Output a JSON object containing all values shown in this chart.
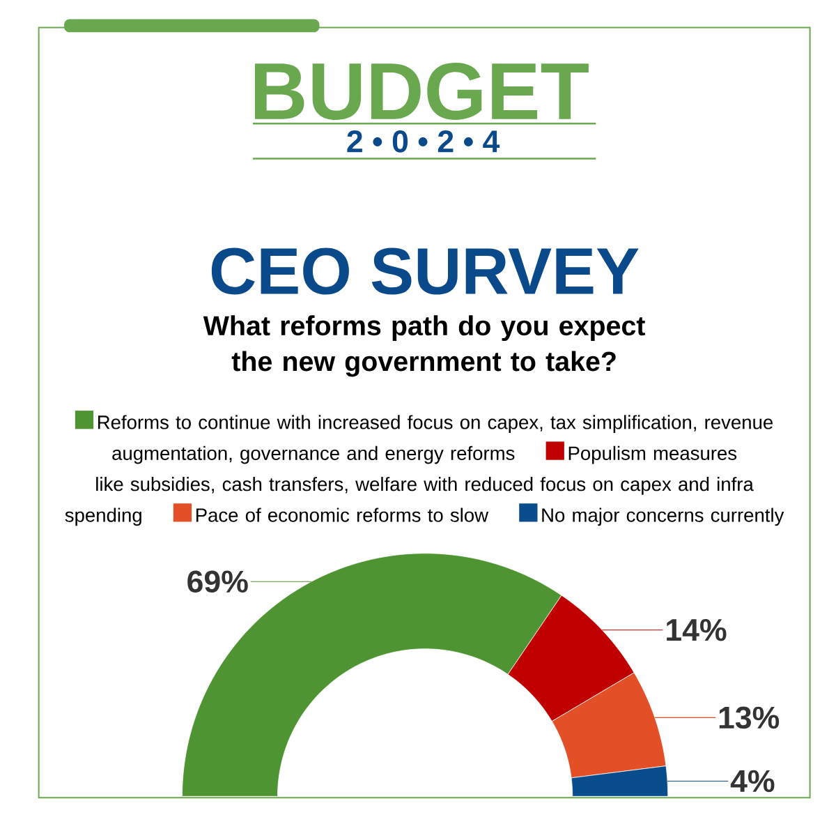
{
  "chart_data": {
    "type": "donut",
    "title": "CEO SURVEY",
    "subtitle": "What reforms path do you expect the new government to take?",
    "annotations": [
      "BUDGET",
      "2 • 0 • 2 • 4"
    ],
    "categories": [
      "Reforms to continue with increased focus on capex, tax simplification, revenue augmentation, governance and energy reforms",
      "Populism measures like subsidies, cash transfers, welfare with reduced focus on capex and infra spending",
      "Pace of economic reforms to slow",
      "No major concerns currently"
    ],
    "values": [
      69,
      14,
      13,
      4
    ],
    "value_labels": [
      "69%",
      "14%",
      "13%",
      "4%"
    ],
    "colors": [
      "#4f9432",
      "#c00000",
      "#e34f26",
      "#0a4d8c"
    ],
    "legend": "top"
  }
}
